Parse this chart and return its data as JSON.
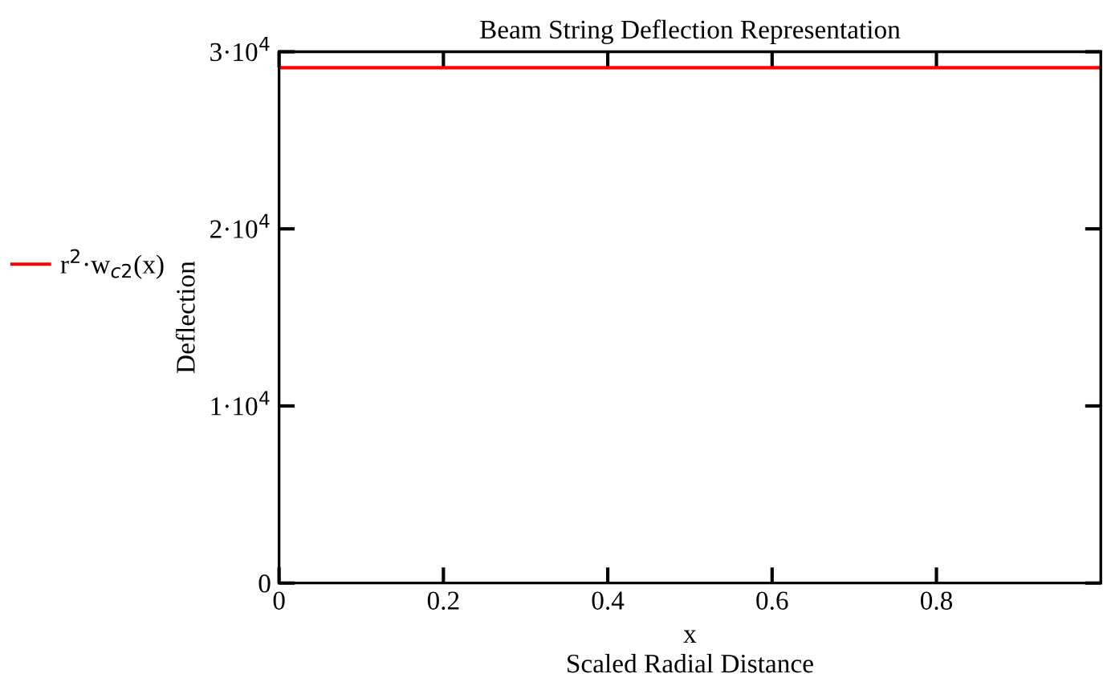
{
  "chart_data": {
    "type": "line",
    "title": "Beam String Deflection Representation",
    "xlabel": "x\nScaled Radial Distance",
    "ylabel": "Deflection",
    "x": [
      0,
      1
    ],
    "series": [
      {
        "name": "r$^{2}$·w$_{c2}$(x)",
        "color": "#ff0000",
        "values": [
          29100,
          29100
        ]
      }
    ],
    "xlim": [
      0,
      1
    ],
    "xticks": [
      0,
      0.2,
      0.4,
      0.6,
      0.8
    ],
    "ylim": [
      0,
      30000
    ],
    "yticks": [
      0,
      {
        "value": 10000,
        "label": "1·10$^{4}$"
      },
      {
        "value": 20000,
        "label": "2·10$^{4}$"
      },
      {
        "value": 30000,
        "label": "3·10$^{4}$"
      }
    ],
    "grid": false,
    "legend": "left",
    "marker": "none",
    "line_style": "solid"
  }
}
